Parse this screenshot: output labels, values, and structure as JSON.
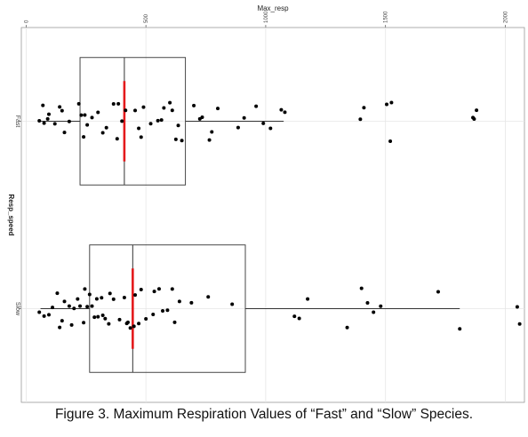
{
  "caption": "Figure 3.  Maximum Respiration Values of “Fast” and “Slow” Species.",
  "chart_data": {
    "type": "boxplot",
    "orientation": "horizontal",
    "xlabel": "Max_resp",
    "ylabel": "Resp_speed",
    "x_axis_position": "top",
    "xlim": [
      -20,
      2080
    ],
    "x_ticks": [
      0,
      500,
      1000,
      1500,
      2000
    ],
    "x_tick_labels": [
      "0",
      "500",
      "1000",
      "1500",
      "2000"
    ],
    "categories": [
      "Fast",
      "Slow"
    ],
    "grid": true,
    "colors": {
      "median": "#e41a1c",
      "box": "#333333",
      "point": "#000000",
      "grid": "#e6e6e6"
    },
    "boxes": [
      {
        "name": "Fast",
        "whisker_low": 60,
        "q1": 225,
        "median": 410,
        "q3": 665,
        "whisker_high": 1075
      },
      {
        "name": "Slow",
        "whisker_low": 60,
        "q1": 265,
        "median": 445,
        "q3": 915,
        "whisker_high": 1810
      }
    ],
    "points": [
      {
        "group": "Fast",
        "values": [
          55,
          120,
          70,
          150,
          90,
          180,
          220,
          240,
          255,
          275,
          300,
          320,
          335,
          385,
          400,
          415,
          470,
          490,
          520,
          550,
          575,
          600,
          625,
          650,
          700,
          725,
          765,
          800,
          910,
          990,
          1020,
          1080,
          1410,
          1520,
          1870,
          1880,
          75,
          95,
          140,
          160,
          230,
          245,
          365,
          380,
          455,
          480,
          565,
          610,
          635,
          735,
          775,
          885,
          960,
          1065,
          1395,
          1505,
          1525,
          1865
        ]
      },
      {
        "group": "Slow",
        "values": [
          75,
          95,
          140,
          160,
          180,
          200,
          225,
          240,
          255,
          275,
          295,
          315,
          330,
          350,
          365,
          390,
          420,
          435,
          450,
          470,
          500,
          530,
          570,
          610,
          640,
          690,
          760,
          860,
          1120,
          1140,
          1175,
          1340,
          1400,
          1425,
          1450,
          1480,
          1720,
          1810,
          2050,
          2060,
          55,
          110,
          130,
          150,
          190,
          215,
          245,
          265,
          285,
          300,
          320,
          345,
          410,
          425,
          455,
          480,
          535,
          555,
          590,
          620
        ]
      }
    ]
  }
}
